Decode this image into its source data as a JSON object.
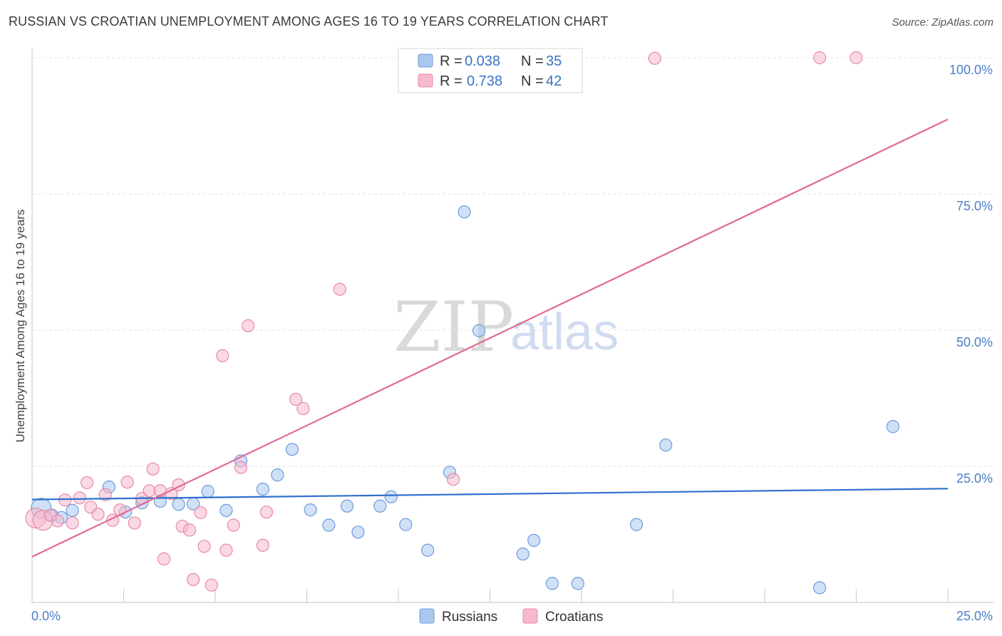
{
  "header": {
    "title": "RUSSIAN VS CROATIAN UNEMPLOYMENT AMONG AGES 16 TO 19 YEARS CORRELATION CHART",
    "source": "Source: ZipAtlas.com"
  },
  "watermark": {
    "zip": "ZIP",
    "atlas": "atlas"
  },
  "colors": {
    "russians_fill": "#a9c8f0",
    "russians_stroke": "#6c9bd8",
    "russians_line": "#2f6fce",
    "croatians_fill": "#f6b9cd",
    "croatians_stroke": "#e68aa9",
    "croatians_line": "#e06a94",
    "tick_text": "#4a7fc7"
  },
  "legend": {
    "items": [
      {
        "r_label": "R = ",
        "r_value": "0.038",
        "n_label": "N = ",
        "n_value": "35"
      },
      {
        "r_label": "R = ",
        "r_value": "0.738",
        "n_label": "N = ",
        "n_value": "42"
      }
    ]
  },
  "bottom_legend": {
    "russians": "Russians",
    "croatians": "Croatians"
  },
  "chart_data": {
    "type": "scatter",
    "title": "RUSSIAN VS CROATIAN UNEMPLOYMENT AMONG AGES 16 TO 19 YEARS CORRELATION CHART",
    "xlabel": "",
    "ylabel": "Unemployment Among Ages 16 to 19 years",
    "xlim": [
      0,
      25
    ],
    "ylim": [
      0,
      104
    ],
    "x_tick_labels": [
      "0.0%",
      "25.0%"
    ],
    "y_ticks": [
      25,
      50,
      75,
      100
    ],
    "y_tick_labels": [
      "25.0%",
      "50.0%",
      "75.0%",
      "100.0%"
    ],
    "grid": true,
    "series": [
      {
        "name": "Russians",
        "r": 0.038,
        "n": 35,
        "trend": {
          "x": [
            0,
            25
          ],
          "y": [
            18.9,
            20.9
          ]
        },
        "points": [
          [
            0.25,
            17.3
          ],
          [
            0.55,
            16.0
          ],
          [
            0.8,
            15.6
          ],
          [
            1.1,
            16.9
          ],
          [
            2.1,
            21.2
          ],
          [
            2.55,
            16.6
          ],
          [
            3.0,
            18.3
          ],
          [
            3.5,
            18.6
          ],
          [
            4.0,
            18.0
          ],
          [
            4.4,
            18.1
          ],
          [
            4.8,
            20.4
          ],
          [
            5.3,
            16.9
          ],
          [
            5.7,
            26.0
          ],
          [
            6.3,
            20.8
          ],
          [
            6.7,
            23.4
          ],
          [
            7.1,
            28.1
          ],
          [
            7.6,
            17.0
          ],
          [
            8.1,
            14.2
          ],
          [
            8.6,
            17.7
          ],
          [
            8.9,
            12.9
          ],
          [
            9.5,
            17.7
          ],
          [
            9.8,
            19.4
          ],
          [
            10.2,
            14.3
          ],
          [
            10.8,
            9.6
          ],
          [
            11.4,
            23.9
          ],
          [
            11.8,
            71.7
          ],
          [
            12.2,
            49.9
          ],
          [
            13.4,
            8.9
          ],
          [
            13.7,
            11.4
          ],
          [
            14.2,
            3.5
          ],
          [
            14.9,
            3.5
          ],
          [
            16.5,
            14.3
          ],
          [
            17.3,
            28.9
          ],
          [
            21.5,
            2.7
          ],
          [
            23.5,
            32.3
          ]
        ]
      },
      {
        "name": "Croatians",
        "r": 0.738,
        "n": 42,
        "trend": {
          "x": [
            0,
            25
          ],
          "y": [
            8.4,
            88.7
          ]
        },
        "points": [
          [
            0.1,
            15.5
          ],
          [
            0.3,
            15.1
          ],
          [
            0.5,
            16.0
          ],
          [
            0.7,
            15.0
          ],
          [
            0.9,
            18.8
          ],
          [
            1.1,
            14.6
          ],
          [
            1.3,
            19.2
          ],
          [
            1.5,
            22.0
          ],
          [
            1.6,
            17.5
          ],
          [
            1.8,
            16.2
          ],
          [
            2.0,
            19.8
          ],
          [
            2.2,
            15.1
          ],
          [
            2.4,
            17.0
          ],
          [
            2.6,
            22.1
          ],
          [
            2.8,
            14.6
          ],
          [
            3.0,
            19.1
          ],
          [
            3.2,
            20.5
          ],
          [
            3.3,
            24.5
          ],
          [
            3.5,
            20.5
          ],
          [
            3.6,
            8.0
          ],
          [
            3.8,
            20.0
          ],
          [
            4.0,
            21.6
          ],
          [
            4.1,
            14.0
          ],
          [
            4.3,
            13.3
          ],
          [
            4.4,
            4.2
          ],
          [
            4.6,
            16.5
          ],
          [
            4.7,
            10.3
          ],
          [
            4.9,
            3.2
          ],
          [
            5.2,
            45.3
          ],
          [
            5.3,
            9.6
          ],
          [
            5.5,
            14.2
          ],
          [
            5.7,
            24.8
          ],
          [
            5.9,
            50.8
          ],
          [
            6.3,
            10.5
          ],
          [
            6.4,
            16.6
          ],
          [
            7.2,
            37.3
          ],
          [
            7.4,
            35.6
          ],
          [
            8.4,
            57.5
          ],
          [
            11.5,
            22.6
          ],
          [
            17.0,
            99.9
          ],
          [
            21.5,
            100.0
          ],
          [
            22.5,
            100.0
          ]
        ]
      }
    ]
  }
}
